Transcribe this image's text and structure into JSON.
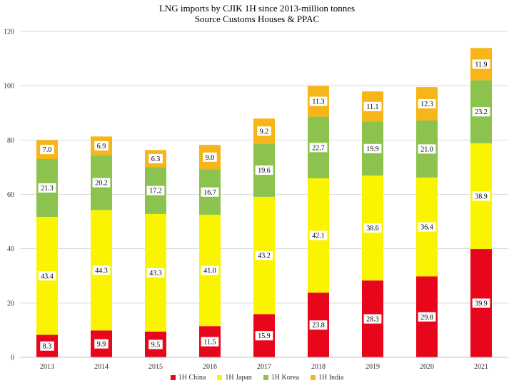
{
  "chart_data": {
    "type": "bar",
    "stacked": true,
    "title": "LNG imports by CJIK 1H since 2013-million tonnes",
    "subtitle": "Source Customs Houses & PPAC",
    "categories": [
      "2013",
      "2014",
      "2015",
      "2016",
      "2017",
      "2018",
      "2019",
      "2020",
      "2021"
    ],
    "series": [
      {
        "name": "1H China",
        "color": "#e8061c",
        "values": [
          8.3,
          9.9,
          9.5,
          11.5,
          15.9,
          23.8,
          28.3,
          29.8,
          39.9
        ]
      },
      {
        "name": "1H Japan",
        "color": "#fbf400",
        "values": [
          43.4,
          44.3,
          43.3,
          41.0,
          43.2,
          42.1,
          38.6,
          36.4,
          38.9
        ]
      },
      {
        "name": "1H Korea",
        "color": "#8cc34e",
        "values": [
          21.3,
          20.2,
          17.2,
          16.7,
          19.6,
          22.7,
          19.9,
          21.0,
          23.2
        ]
      },
      {
        "name": "1H India",
        "color": "#f7b519",
        "values": [
          7.0,
          6.9,
          6.3,
          9.0,
          9.2,
          11.3,
          11.1,
          12.3,
          11.9
        ]
      }
    ],
    "ylim": [
      0,
      120
    ],
    "yticks": [
      0,
      20,
      40,
      60,
      80,
      100,
      120
    ],
    "grid": true,
    "legend": "bottom"
  }
}
